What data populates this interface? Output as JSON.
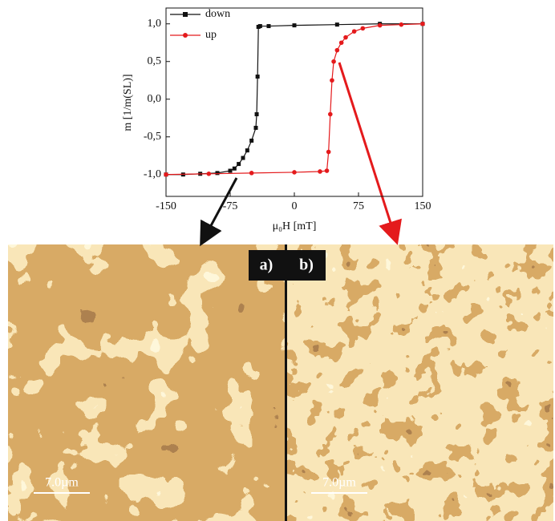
{
  "chart_data": {
    "type": "line",
    "x_label": "μ₀H [mT]",
    "y_label": "m [1/m(SL)]",
    "xlim": [
      -150,
      150
    ],
    "xticks": [
      -150,
      -75,
      0,
      75,
      150
    ],
    "ylim": [
      -1.29,
      1.21
    ],
    "yticks": [
      {
        "value": 1,
        "label": "1,0"
      },
      {
        "value": 0.5,
        "label": "0,5"
      },
      {
        "value": 0,
        "label": "0,0"
      },
      {
        "value": -0.5,
        "label": "-0,5"
      },
      {
        "value": -1,
        "label": "-1,0"
      }
    ],
    "legend": "upper left",
    "series": [
      {
        "name": "down",
        "color": "#111111",
        "marker": "square",
        "x": [
          150,
          100,
          50,
          0,
          -30,
          -40,
          -42,
          -43,
          -44,
          -45,
          -50,
          -55,
          -60,
          -65,
          -70,
          -75,
          -90,
          -110,
          -130,
          -150
        ],
        "values": [
          1.0,
          1.0,
          0.99,
          0.98,
          0.97,
          0.97,
          0.96,
          0.3,
          -0.2,
          -0.38,
          -0.55,
          -0.68,
          -0.78,
          -0.86,
          -0.92,
          -0.95,
          -0.98,
          -0.99,
          -1.0,
          -1.0
        ]
      },
      {
        "name": "up",
        "color": "#e41a1c",
        "marker": "circle",
        "x": [
          -150,
          -100,
          -50,
          0,
          30,
          38,
          40,
          42,
          44,
          46,
          50,
          55,
          60,
          70,
          80,
          100,
          125,
          150
        ],
        "values": [
          -1.0,
          -0.99,
          -0.98,
          -0.97,
          -0.96,
          -0.95,
          -0.7,
          -0.2,
          0.25,
          0.5,
          0.65,
          0.75,
          0.82,
          0.9,
          0.94,
          0.98,
          0.99,
          1.0
        ]
      }
    ]
  },
  "panels": [
    {
      "label": "a)",
      "scale": "7.0µm"
    },
    {
      "label": "b)",
      "scale": "7.0µm"
    }
  ]
}
